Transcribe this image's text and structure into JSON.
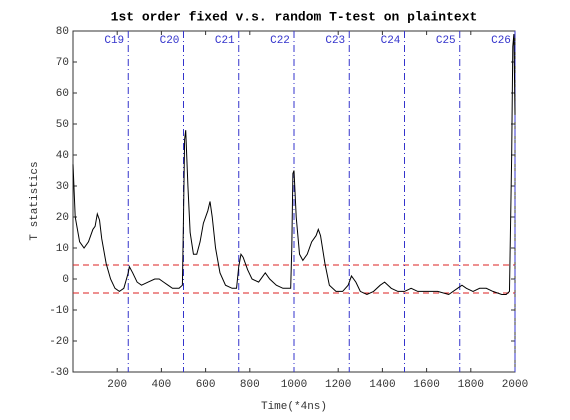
{
  "chart_data": {
    "type": "line",
    "title": "1st order fixed v.s. random T-test on plaintext",
    "x_label": "Time(*4ns)",
    "y_label": "T statistics",
    "xlim": [
      0,
      2000
    ],
    "ylim": [
      -30,
      80
    ],
    "xticks": [
      200,
      400,
      600,
      800,
      1000,
      1200,
      1400,
      1600,
      1800,
      2000
    ],
    "yticks": [
      -30,
      -20,
      -10,
      0,
      10,
      20,
      30,
      40,
      50,
      60,
      70,
      80
    ],
    "thresholds": [
      4.5,
      -4.5
    ],
    "threshold_color": "#dd2222",
    "markers": [
      {
        "x": 250,
        "label": "C19"
      },
      {
        "x": 500,
        "label": "C20"
      },
      {
        "x": 750,
        "label": "C21"
      },
      {
        "x": 1000,
        "label": "C22"
      },
      {
        "x": 1250,
        "label": "C23"
      },
      {
        "x": 1500,
        "label": "C24"
      },
      {
        "x": 1750,
        "label": "C25"
      },
      {
        "x": 2000,
        "label": "C26"
      }
    ],
    "marker_color": "#3333cc",
    "series": [
      {
        "name": "T statistic",
        "color": "#000000",
        "x": [
          0,
          10,
          30,
          50,
          70,
          90,
          100,
          110,
          120,
          130,
          150,
          170,
          190,
          210,
          230,
          250,
          255,
          270,
          290,
          310,
          340,
          370,
          390,
          410,
          430,
          450,
          480,
          495,
          500,
          505,
          510,
          520,
          530,
          545,
          560,
          575,
          590,
          610,
          620,
          630,
          645,
          665,
          690,
          720,
          740,
          750,
          760,
          770,
          790,
          810,
          840,
          870,
          890,
          920,
          950,
          985,
          990,
          995,
          1000,
          1010,
          1025,
          1040,
          1060,
          1080,
          1100,
          1110,
          1120,
          1140,
          1160,
          1190,
          1220,
          1245,
          1260,
          1280,
          1300,
          1330,
          1360,
          1390,
          1410,
          1440,
          1470,
          1500,
          1530,
          1560,
          1600,
          1650,
          1700,
          1740,
          1760,
          1780,
          1810,
          1840,
          1870,
          1900,
          1940,
          1960,
          1975,
          1985,
          1990,
          1995,
          2000
        ],
        "values": [
          37,
          20,
          12,
          10,
          12,
          16,
          17,
          21,
          19,
          13,
          5,
          0,
          -3,
          -4,
          -3,
          2,
          4,
          2,
          -1,
          -2,
          -1,
          0,
          0,
          -1,
          -2,
          -3,
          -3,
          -2,
          20,
          45,
          48,
          30,
          15,
          8,
          8,
          12,
          18,
          22,
          25,
          20,
          10,
          2,
          -2,
          -3,
          -3,
          4,
          8,
          7,
          3,
          0,
          -1,
          2,
          0,
          -2,
          -3,
          -3,
          10,
          34,
          35,
          20,
          8,
          6,
          8,
          12,
          14,
          16,
          14,
          5,
          -2,
          -4,
          -4,
          -2,
          1,
          -1,
          -4,
          -5,
          -4,
          -2,
          -1,
          -3,
          -4,
          -4,
          -3,
          -4,
          -4,
          -4,
          -5,
          -3,
          -2,
          -3,
          -4,
          -3,
          -3,
          -4,
          -5,
          -5,
          -4,
          40,
          75,
          79,
          53
        ]
      }
    ]
  }
}
